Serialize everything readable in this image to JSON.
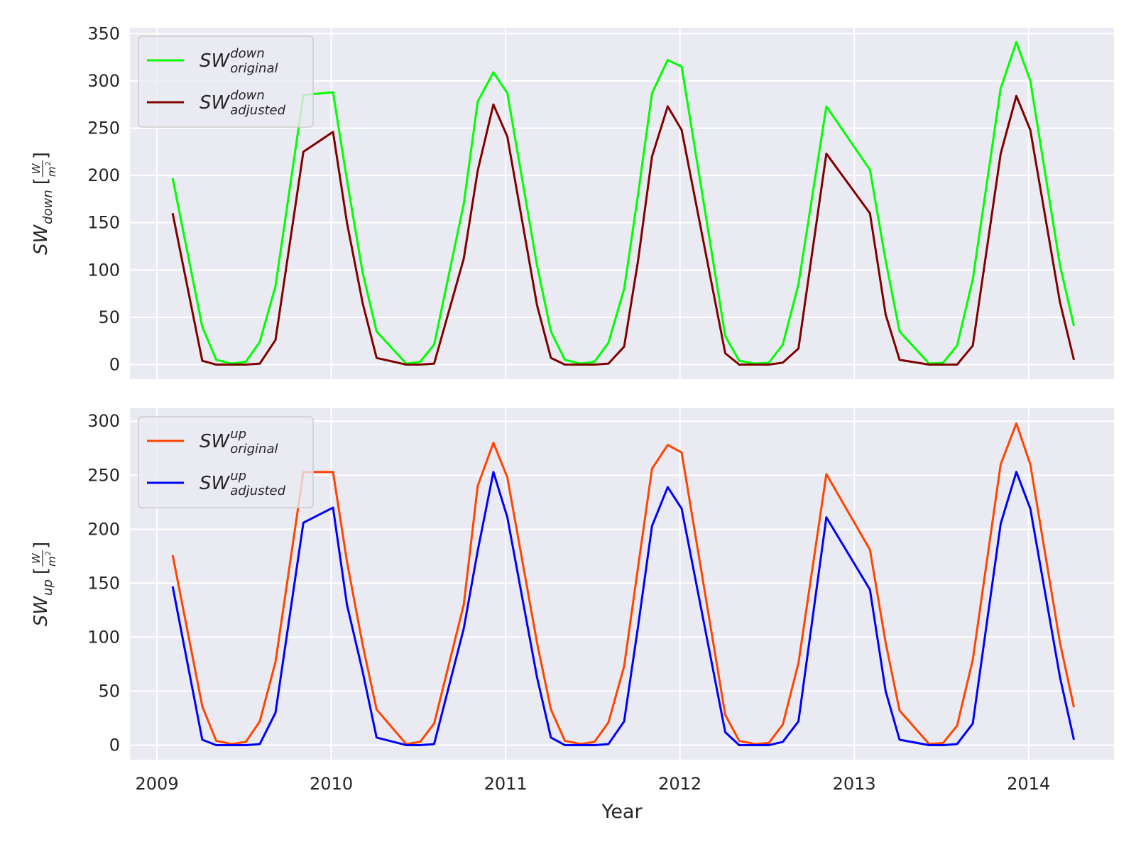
{
  "chart_data": [
    {
      "type": "line",
      "ylabel": {
        "symbol": "SW",
        "sub": "down",
        "open": "[",
        "num": "W",
        "den": "m",
        "den_sup": "2",
        "close": "]"
      },
      "x": [
        2009.09,
        2009.26,
        2009.34,
        2009.43,
        2009.51,
        2009.59,
        2009.68,
        2009.84,
        2010.01,
        2010.09,
        2010.18,
        2010.26,
        2010.43,
        2010.51,
        2010.59,
        2010.76,
        2010.84,
        2010.93,
        2011.01,
        2011.18,
        2011.26,
        2011.34,
        2011.43,
        2011.51,
        2011.59,
        2011.68,
        2011.76,
        2011.84,
        2011.93,
        2012.01,
        2012.26,
        2012.34,
        2012.43,
        2012.51,
        2012.59,
        2012.68,
        2012.84,
        2013.09,
        2013.18,
        2013.26,
        2013.43,
        2013.51,
        2013.59,
        2013.68,
        2013.84,
        2013.93,
        2014.01,
        2014.18,
        2014.26
      ],
      "series": [
        {
          "name": "SW",
          "name_sup": "down",
          "name_sub": "original",
          "color": "#00ff00",
          "values": [
            197,
            40,
            5,
            1,
            3,
            24,
            83,
            285,
            288,
            195,
            97,
            35,
            1,
            3,
            21,
            170,
            278,
            309,
            287,
            105,
            35,
            5,
            1,
            3,
            23,
            80,
            180,
            287,
            322,
            315,
            30,
            4,
            1,
            2,
            21,
            85,
            273,
            206,
            110,
            35,
            1,
            2,
            20,
            90,
            292,
            341,
            300,
            105,
            41
          ]
        },
        {
          "name": "SW",
          "name_sup": "down",
          "name_sub": "adjusted",
          "color": "#800000",
          "values": [
            160,
            4,
            0,
            0,
            0,
            1,
            26,
            225,
            246,
            150,
            65,
            7,
            0,
            0,
            1,
            112,
            205,
            275,
            241,
            63,
            7,
            0,
            0,
            0,
            1,
            19,
            110,
            220,
            273,
            248,
            12,
            0,
            0,
            0,
            2,
            17,
            223,
            160,
            53,
            5,
            0,
            0,
            0,
            20,
            223,
            284,
            248,
            66,
            5
          ]
        }
      ],
      "xlim": [
        2008.845,
        2014.49
      ],
      "xticks": [
        2009,
        2010,
        2011,
        2012,
        2013,
        2014
      ],
      "ylim": [
        -15.4,
        356.2
      ],
      "yticks": [
        0,
        50,
        100,
        150,
        200,
        250,
        300,
        350
      ],
      "grid": true,
      "legend": "upper left"
    },
    {
      "type": "line",
      "xlabel": "Year",
      "ylabel": {
        "symbol": "SW",
        "sub": "up",
        "open": "[",
        "num": "W",
        "den": "m",
        "den_sup": "2",
        "close": "]"
      },
      "x": [
        2009.09,
        2009.26,
        2009.34,
        2009.43,
        2009.51,
        2009.59,
        2009.68,
        2009.84,
        2010.01,
        2010.09,
        2010.18,
        2010.26,
        2010.43,
        2010.51,
        2010.59,
        2010.76,
        2010.84,
        2010.93,
        2011.01,
        2011.18,
        2011.26,
        2011.34,
        2011.43,
        2011.51,
        2011.59,
        2011.68,
        2011.76,
        2011.84,
        2011.93,
        2012.01,
        2012.26,
        2012.34,
        2012.43,
        2012.51,
        2012.59,
        2012.68,
        2012.84,
        2013.09,
        2013.18,
        2013.26,
        2013.43,
        2013.51,
        2013.59,
        2013.68,
        2013.84,
        2013.93,
        2014.01,
        2014.18,
        2014.26
      ],
      "series": [
        {
          "name": "SW",
          "name_sup": "up",
          "name_sub": "original",
          "color": "#ff4500",
          "values": [
            176,
            36,
            4,
            1,
            3,
            22,
            77,
            253,
            253,
            170,
            93,
            33,
            1,
            3,
            20,
            130,
            240,
            280,
            248,
            95,
            33,
            4,
            1,
            3,
            21,
            73,
            165,
            256,
            278,
            271,
            28,
            4,
            1,
            2,
            19,
            76,
            251,
            181,
            95,
            32,
            1,
            2,
            18,
            79,
            260,
            298,
            260,
            95,
            35
          ]
        },
        {
          "name": "SW",
          "name_sup": "up",
          "name_sub": "adjusted",
          "color": "#0000ff",
          "values": [
            147,
            5,
            0,
            0,
            0,
            1,
            30,
            206,
            220,
            130,
            68,
            7,
            0,
            0,
            1,
            108,
            180,
            253,
            211,
            63,
            7,
            0,
            0,
            0,
            1,
            22,
            110,
            203,
            239,
            219,
            12,
            0,
            0,
            0,
            3,
            22,
            211,
            144,
            50,
            5,
            0,
            0,
            1,
            20,
            205,
            253,
            219,
            63,
            5
          ]
        }
      ],
      "xlim": [
        2008.845,
        2014.49
      ],
      "xticks": [
        2009,
        2010,
        2011,
        2012,
        2013,
        2014
      ],
      "ylim": [
        -13.5,
        312
      ],
      "yticks": [
        0,
        50,
        100,
        150,
        200,
        250,
        300
      ],
      "grid": true,
      "legend": "upper left"
    }
  ]
}
